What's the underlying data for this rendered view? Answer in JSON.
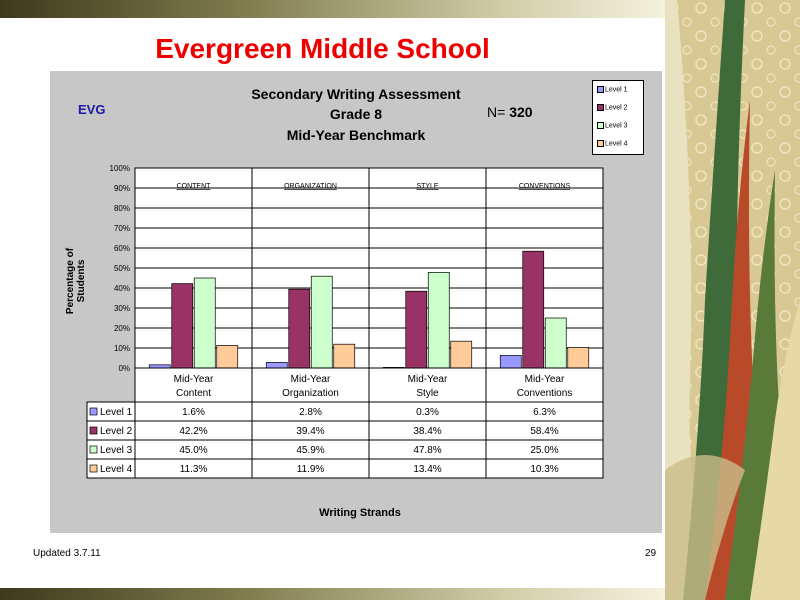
{
  "slide": {
    "school_title": "Evergreen Middle School",
    "updated": "Updated  3.7.11",
    "page_number": "29"
  },
  "chart_header": {
    "title_line1": "Secondary Writing Assessment",
    "title_line2": "Grade 8",
    "title_line3": "Mid-Year Benchmark",
    "school_code": "EVG",
    "n_prefix": "N=",
    "n_value": "320"
  },
  "chart_data": {
    "type": "bar",
    "ylabel": "Percentage of Students",
    "xlabel": "Writing Strands",
    "ylim": [
      0,
      100
    ],
    "ytick_step": 10,
    "grid": true,
    "legend_position": "top-right",
    "strand_headers": [
      "CONTENT",
      "ORGANIZATION",
      "STYLE",
      "CONVENTIONS"
    ],
    "categories": [
      [
        "Mid-Year",
        "Content"
      ],
      [
        "Mid-Year",
        "Organization"
      ],
      [
        "Mid-Year",
        "Style"
      ],
      [
        "Mid-Year",
        "Conventions"
      ]
    ],
    "series": [
      {
        "name": "Level 1",
        "color": "#9999ff",
        "values": [
          1.6,
          2.8,
          0.3,
          6.3
        ],
        "labels": [
          "1.6%",
          "2.8%",
          "0.3%",
          "6.3%"
        ]
      },
      {
        "name": "Level 2",
        "color": "#993366",
        "values": [
          42.2,
          39.4,
          38.4,
          58.4
        ],
        "labels": [
          "42.2%",
          "39.4%",
          "38.4%",
          "58.4%"
        ]
      },
      {
        "name": "Level 3",
        "color": "#ccffcc",
        "values": [
          45.0,
          45.9,
          47.8,
          25.0
        ],
        "labels": [
          "45.0%",
          "45.9%",
          "47.8%",
          "25.0%"
        ]
      },
      {
        "name": "Level 4",
        "color": "#ffcc99",
        "values": [
          11.3,
          11.9,
          13.4,
          10.3
        ],
        "labels": [
          "11.3%",
          "11.9%",
          "13.4%",
          "10.3%"
        ]
      }
    ]
  }
}
